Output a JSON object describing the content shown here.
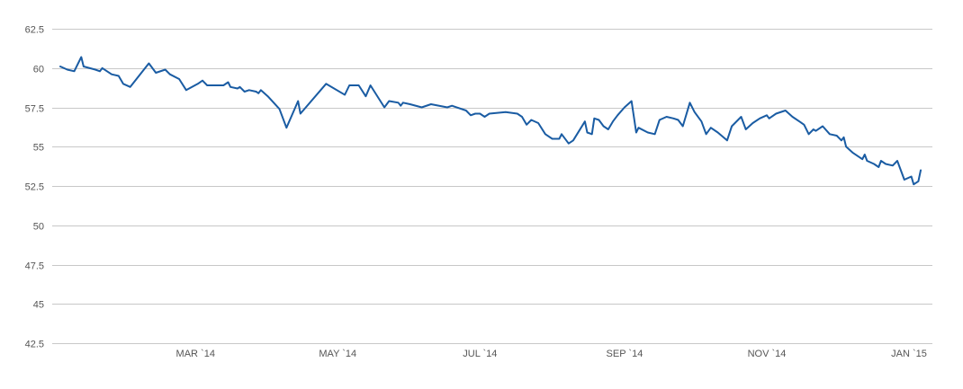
{
  "chart_data": {
    "type": "line",
    "title": "",
    "xlabel": "",
    "ylabel": "",
    "grid": "horizontal",
    "legend": "none",
    "xlim": [
      "2014-01-02",
      "2015-01-06"
    ],
    "ylim": [
      42.5,
      62.5
    ],
    "y_ticks": [
      42.5,
      45,
      47.5,
      50,
      52.5,
      55,
      57.5,
      60,
      62.5
    ],
    "y_tick_labels": [
      "42.5",
      "45",
      "47.5",
      "50",
      "52.5",
      "55",
      "57.5",
      "60",
      "62.5"
    ],
    "x_ticks": [
      "2014-03-01",
      "2014-05-01",
      "2014-07-01",
      "2014-09-01",
      "2014-11-01",
      "2015-01-01"
    ],
    "x_tick_labels": [
      "MAR `14",
      "MAY `14",
      "JUL `14",
      "SEP `14",
      "NOV `14",
      "JAN `15"
    ],
    "series": [
      {
        "color": "#1a5ca3",
        "points": [
          [
            "2014-01-02",
            60.1
          ],
          [
            "2014-01-05",
            59.9
          ],
          [
            "2014-01-08",
            59.8
          ],
          [
            "2014-01-11",
            60.7
          ],
          [
            "2014-01-12",
            60.1
          ],
          [
            "2014-01-17",
            59.9
          ],
          [
            "2014-01-19",
            59.8
          ],
          [
            "2014-01-20",
            60.0
          ],
          [
            "2014-01-24",
            59.6
          ],
          [
            "2014-01-27",
            59.5
          ],
          [
            "2014-01-29",
            59.0
          ],
          [
            "2014-02-01",
            58.8
          ],
          [
            "2014-02-09",
            60.3
          ],
          [
            "2014-02-12",
            59.7
          ],
          [
            "2014-02-16",
            59.9
          ],
          [
            "2014-02-18",
            59.6
          ],
          [
            "2014-02-22",
            59.3
          ],
          [
            "2014-02-25",
            58.6
          ],
          [
            "2014-03-02",
            59.0
          ],
          [
            "2014-03-04",
            59.2
          ],
          [
            "2014-03-06",
            58.9
          ],
          [
            "2014-03-13",
            58.9
          ],
          [
            "2014-03-15",
            59.1
          ],
          [
            "2014-03-16",
            58.8
          ],
          [
            "2014-03-19",
            58.7
          ],
          [
            "2014-03-20",
            58.8
          ],
          [
            "2014-03-22",
            58.5
          ],
          [
            "2014-03-24",
            58.6
          ],
          [
            "2014-03-27",
            58.5
          ],
          [
            "2014-03-28",
            58.4
          ],
          [
            "2014-03-29",
            58.6
          ],
          [
            "2014-04-01",
            58.2
          ],
          [
            "2014-04-06",
            57.4
          ],
          [
            "2014-04-09",
            56.2
          ],
          [
            "2014-04-14",
            57.9
          ],
          [
            "2014-04-15",
            57.1
          ],
          [
            "2014-04-26",
            59.0
          ],
          [
            "2014-05-04",
            58.3
          ],
          [
            "2014-05-06",
            58.9
          ],
          [
            "2014-05-10",
            58.9
          ],
          [
            "2014-05-13",
            58.2
          ],
          [
            "2014-05-15",
            58.9
          ],
          [
            "2014-05-21",
            57.5
          ],
          [
            "2014-05-23",
            57.9
          ],
          [
            "2014-05-27",
            57.8
          ],
          [
            "2014-05-28",
            57.6
          ],
          [
            "2014-05-29",
            57.8
          ],
          [
            "2014-06-01",
            57.7
          ],
          [
            "2014-06-06",
            57.5
          ],
          [
            "2014-06-10",
            57.7
          ],
          [
            "2014-06-17",
            57.5
          ],
          [
            "2014-06-19",
            57.6
          ],
          [
            "2014-06-25",
            57.3
          ],
          [
            "2014-06-27",
            57.0
          ],
          [
            "2014-06-29",
            57.1
          ],
          [
            "2014-07-01",
            57.1
          ],
          [
            "2014-07-03",
            56.9
          ],
          [
            "2014-07-05",
            57.1
          ],
          [
            "2014-07-12",
            57.2
          ],
          [
            "2014-07-17",
            57.1
          ],
          [
            "2014-07-19",
            56.9
          ],
          [
            "2014-07-21",
            56.4
          ],
          [
            "2014-07-23",
            56.7
          ],
          [
            "2014-07-26",
            56.5
          ],
          [
            "2014-07-29",
            55.8
          ],
          [
            "2014-08-01",
            55.5
          ],
          [
            "2014-08-04",
            55.5
          ],
          [
            "2014-08-05",
            55.8
          ],
          [
            "2014-08-08",
            55.2
          ],
          [
            "2014-08-10",
            55.4
          ],
          [
            "2014-08-15",
            56.6
          ],
          [
            "2014-08-16",
            55.9
          ],
          [
            "2014-08-18",
            55.8
          ],
          [
            "2014-08-19",
            56.8
          ],
          [
            "2014-08-21",
            56.7
          ],
          [
            "2014-08-23",
            56.3
          ],
          [
            "2014-08-25",
            56.1
          ],
          [
            "2014-08-27",
            56.6
          ],
          [
            "2014-08-29",
            57.0
          ],
          [
            "2014-09-01",
            57.5
          ],
          [
            "2014-09-04",
            57.9
          ],
          [
            "2014-09-06",
            55.9
          ],
          [
            "2014-09-07",
            56.2
          ],
          [
            "2014-09-11",
            55.9
          ],
          [
            "2014-09-14",
            55.8
          ],
          [
            "2014-09-16",
            56.7
          ],
          [
            "2014-09-19",
            56.9
          ],
          [
            "2014-09-22",
            56.8
          ],
          [
            "2014-09-24",
            56.7
          ],
          [
            "2014-09-26",
            56.3
          ],
          [
            "2014-09-29",
            57.8
          ],
          [
            "2014-10-01",
            57.2
          ],
          [
            "2014-10-04",
            56.6
          ],
          [
            "2014-10-06",
            55.8
          ],
          [
            "2014-10-08",
            56.2
          ],
          [
            "2014-10-11",
            55.9
          ],
          [
            "2014-10-15",
            55.4
          ],
          [
            "2014-10-17",
            56.3
          ],
          [
            "2014-10-21",
            56.9
          ],
          [
            "2014-10-23",
            56.1
          ],
          [
            "2014-10-26",
            56.5
          ],
          [
            "2014-10-29",
            56.8
          ],
          [
            "2014-11-01",
            57.0
          ],
          [
            "2014-11-02",
            56.8
          ],
          [
            "2014-11-05",
            57.1
          ],
          [
            "2014-11-09",
            57.3
          ],
          [
            "2014-11-12",
            56.9
          ],
          [
            "2014-11-15",
            56.6
          ],
          [
            "2014-11-17",
            56.4
          ],
          [
            "2014-11-19",
            55.8
          ],
          [
            "2014-11-21",
            56.1
          ],
          [
            "2014-11-22",
            56.0
          ],
          [
            "2014-11-25",
            56.3
          ],
          [
            "2014-11-28",
            55.8
          ],
          [
            "2014-12-01",
            55.7
          ],
          [
            "2014-12-03",
            55.4
          ],
          [
            "2014-12-04",
            55.6
          ],
          [
            "2014-12-05",
            55.0
          ],
          [
            "2014-12-08",
            54.6
          ],
          [
            "2014-12-12",
            54.2
          ],
          [
            "2014-12-13",
            54.5
          ],
          [
            "2014-12-14",
            54.1
          ],
          [
            "2014-12-17",
            53.9
          ],
          [
            "2014-12-19",
            53.7
          ],
          [
            "2014-12-20",
            54.1
          ],
          [
            "2014-12-22",
            53.9
          ],
          [
            "2014-12-25",
            53.8
          ],
          [
            "2014-12-27",
            54.1
          ],
          [
            "2014-12-30",
            52.9
          ],
          [
            "2015-01-02",
            53.1
          ],
          [
            "2015-01-03",
            52.6
          ],
          [
            "2015-01-05",
            52.8
          ],
          [
            "2015-01-06",
            53.5
          ]
        ]
      }
    ]
  }
}
